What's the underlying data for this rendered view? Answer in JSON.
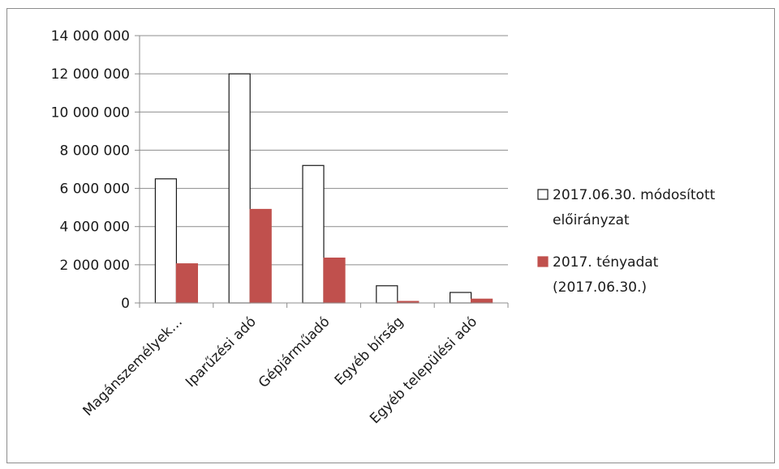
{
  "chart_data": {
    "type": "bar",
    "title": "",
    "xlabel": "",
    "ylabel": "",
    "categories": [
      "Magánszemélyek…",
      "Iparűzési adó",
      "Gépjárműadó",
      "Egyéb bírság",
      "Egyéb települési adó"
    ],
    "series": [
      {
        "name_lines": [
          "2017.06.30. módosított",
          "előirányzat"
        ],
        "color": "#ffffff",
        "stroke": "#1a1a1a",
        "values": [
          6500000,
          12000000,
          7200000,
          900000,
          550000
        ]
      },
      {
        "name_lines": [
          "2017. tényadat",
          "(2017.06.30.)"
        ],
        "color": "#c0504d",
        "stroke": "#c0504d",
        "values": [
          2050000,
          4900000,
          2350000,
          80000,
          200000
        ]
      }
    ],
    "ylim": [
      0,
      14000000
    ],
    "yticks": [
      0,
      2000000,
      4000000,
      6000000,
      8000000,
      10000000,
      12000000,
      14000000
    ],
    "ytick_labels": [
      "0",
      "2 000 000",
      "4 000 000",
      "6 000 000",
      "8 000 000",
      "10 000 000",
      "12 000 000",
      "14 000 000"
    ],
    "grid": true,
    "legend_position": "right"
  }
}
